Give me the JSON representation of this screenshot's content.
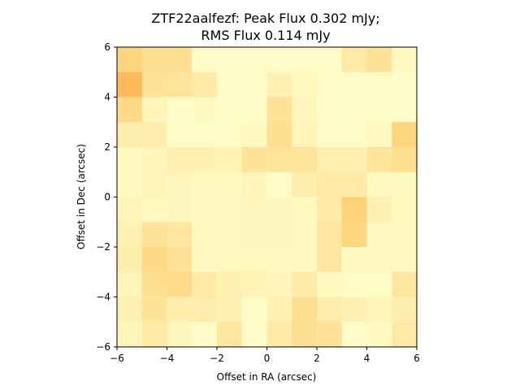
{
  "chart_data": {
    "type": "heatmap",
    "title": "ZTF22aalfezf: Peak Flux 0.302 mJy;",
    "subtitle": "RMS Flux 0.114 mJy",
    "xlabel": "Offset in RA (arcsec)",
    "ylabel": "Offset in Dec (arcsec)",
    "xlim": [
      -6,
      6
    ],
    "ylim": [
      -6,
      6
    ],
    "xticks": [
      -6,
      -4,
      -2,
      0,
      2,
      4,
      6
    ],
    "yticks": [
      -6,
      -4,
      -2,
      0,
      2,
      4,
      6
    ],
    "xtick_labels": [
      "−6",
      "−4",
      "−2",
      "0",
      "2",
      "4",
      "6"
    ],
    "ytick_labels": [
      "−6",
      "−4",
      "−2",
      "0",
      "2",
      "4",
      "6"
    ],
    "grid": false,
    "colormap": "YlOrBr-like (light yellow = low, orange = high)",
    "vmin": 0.0,
    "vmax": 1.0,
    "pixel_size_arcsec": 1,
    "rows_top_to_bottom": [
      [
        0.55,
        0.45,
        0.45,
        0.05,
        0.05,
        0.05,
        0.05,
        0.05,
        0.05,
        0.3,
        0.4,
        0.1
      ],
      [
        0.85,
        0.4,
        0.38,
        0.3,
        0.05,
        0.05,
        0.2,
        0.1,
        0.05,
        0.05,
        0.05,
        0.05
      ],
      [
        0.5,
        0.15,
        0.05,
        0.08,
        0.05,
        0.05,
        0.4,
        0.12,
        0.05,
        0.05,
        0.05,
        0.05
      ],
      [
        0.25,
        0.25,
        0.05,
        0.05,
        0.05,
        0.1,
        0.45,
        0.15,
        0.05,
        0.05,
        0.1,
        0.55
      ],
      [
        0.1,
        0.15,
        0.2,
        0.2,
        0.18,
        0.4,
        0.38,
        0.38,
        0.2,
        0.2,
        0.38,
        0.45
      ],
      [
        0.1,
        0.15,
        0.12,
        0.1,
        0.1,
        0.15,
        0.05,
        0.25,
        0.3,
        0.3,
        0.1,
        0.1
      ],
      [
        0.15,
        0.1,
        0.12,
        0.1,
        0.1,
        0.12,
        0.12,
        0.1,
        0.3,
        0.6,
        0.2,
        0.1
      ],
      [
        0.2,
        0.4,
        0.35,
        0.1,
        0.1,
        0.12,
        0.12,
        0.1,
        0.35,
        0.55,
        0.1,
        0.1
      ],
      [
        0.25,
        0.5,
        0.4,
        0.1,
        0.1,
        0.1,
        0.1,
        0.1,
        0.35,
        0.08,
        0.1,
        0.08
      ],
      [
        0.15,
        0.45,
        0.48,
        0.3,
        0.2,
        0.18,
        0.15,
        0.28,
        0.1,
        0.05,
        0.05,
        0.35
      ],
      [
        0.2,
        0.4,
        0.25,
        0.25,
        0.2,
        0.05,
        0.2,
        0.45,
        0.25,
        0.2,
        0.15,
        0.25
      ],
      [
        0.15,
        0.3,
        0.12,
        0.05,
        0.35,
        0.05,
        0.3,
        0.45,
        0.4,
        0.05,
        0.08,
        0.3
      ]
    ]
  }
}
